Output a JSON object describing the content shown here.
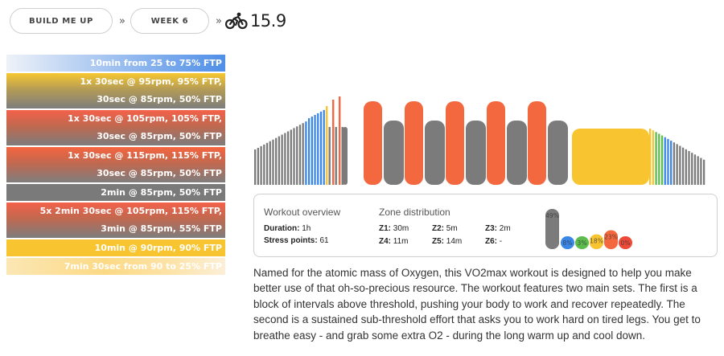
{
  "breadcrumb": {
    "plan": "BUILD ME UP",
    "week": "WEEK 6",
    "separator": "»",
    "score": "15.9"
  },
  "intervals": [
    {
      "style": "blue",
      "lines": [
        "10min from 25 to 75% FTP"
      ]
    },
    {
      "style": "gold",
      "lines": [
        "1x 30sec @ 95rpm, 95% FTP,",
        "30sec @ 85rpm, 50% FTP"
      ]
    },
    {
      "style": "red",
      "lines": [
        "1x 30sec @ 105rpm, 105% FTP,",
        "30sec @ 85rpm, 50% FTP"
      ]
    },
    {
      "style": "red2",
      "lines": [
        "1x 30sec @ 115rpm, 115% FTP,",
        "30sec @ 85rpm, 50% FTP"
      ]
    },
    {
      "style": "grey",
      "lines": [
        "2min @ 85rpm, 50% FTP"
      ]
    },
    {
      "style": "red",
      "lines": [
        "5x 2min 30sec @ 105rpm, 115% FTP,",
        "3min @ 85rpm, 55% FTP"
      ]
    },
    {
      "style": "yellow",
      "lines": [
        "10min @ 90rpm, 90% FTP"
      ]
    },
    {
      "style": "fade",
      "lines": [
        "7min 30sec from 90 to 25% FTP"
      ]
    }
  ],
  "overview": {
    "title": "Workout overview",
    "duration_label": "Duration:",
    "duration": "1h",
    "stress_label": "Stress points:",
    "stress": "61",
    "zone_title": "Zone distribution",
    "zones": [
      {
        "label": "Z1:",
        "value": "30m"
      },
      {
        "label": "Z2:",
        "value": "5m"
      },
      {
        "label": "Z3:",
        "value": "2m"
      },
      {
        "label": "Z4:",
        "value": "11m"
      },
      {
        "label": "Z5:",
        "value": "14m"
      },
      {
        "label": "Z6:",
        "value": "-"
      }
    ],
    "zone_percents": [
      {
        "label": "49%",
        "value": 49,
        "color": "#7b7b7b"
      },
      {
        "label": "8%",
        "value": 8,
        "color": "#3b87e8"
      },
      {
        "label": "3%",
        "value": 3,
        "color": "#5cbd4e"
      },
      {
        "label": "18%",
        "value": 18,
        "color": "#f8c531"
      },
      {
        "label": "23%",
        "value": 23,
        "color": "#f4683f"
      },
      {
        "label": "0%",
        "value": 0,
        "color": "#ee4a3a"
      }
    ]
  },
  "description": "Named for the atomic mass of Oxygen, this VO2max workout is designed to help you make better use of that oh-so-precious resource. The workout features two main sets. The first is a block of intervals above threshold, pushing your body to work and recover repeatedly. The second is a sustained sub-threshold effort that asks you to work hard on tired legs. You get to breathe easy - and grab some extra O2 - during the long warm up and cool down.",
  "colors": {
    "grey": "#7b7b7b",
    "blue": "#3b87e8",
    "green": "#5cbd4e",
    "yellow": "#f8c531",
    "orange": "#f4683f",
    "red": "#ee4a3a"
  }
}
